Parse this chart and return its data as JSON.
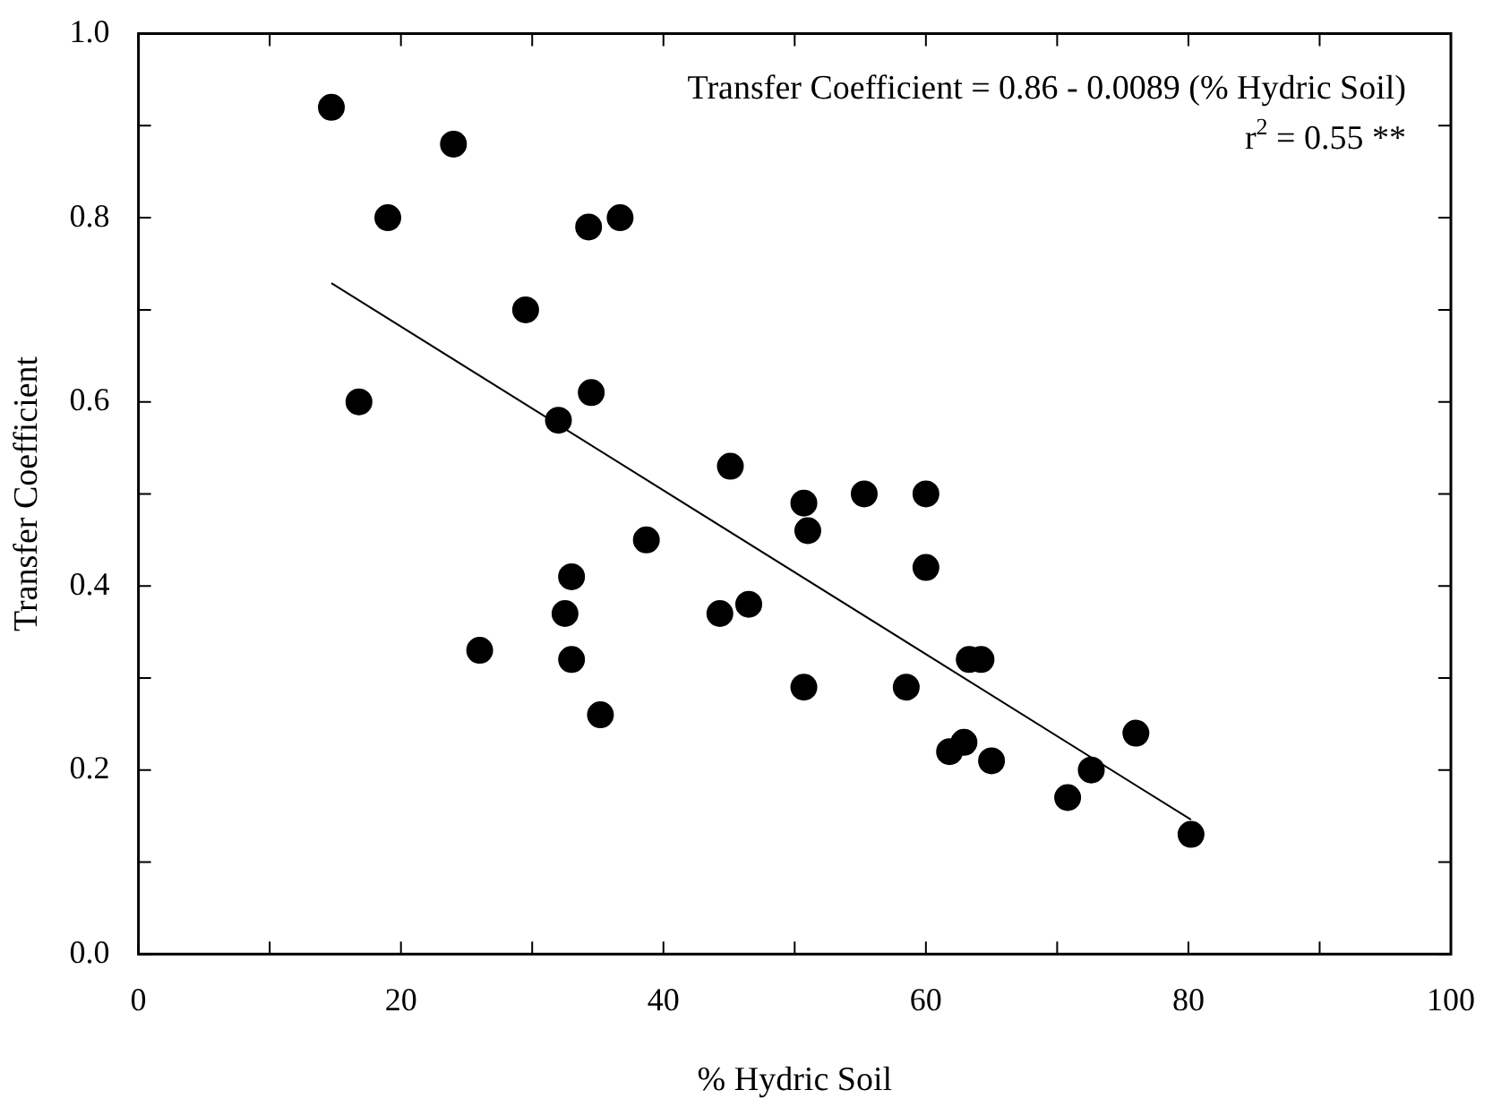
{
  "chart_data": {
    "type": "scatter",
    "xlabel": "% Hydric Soil",
    "ylabel": "Transfer Coefficient",
    "annotations": [
      "Transfer Coefficient = 0.86 - 0.0089 (% Hydric Soil)",
      "r$^{2}$ = 0.55 **"
    ],
    "xlim": [
      0,
      100
    ],
    "ylim": [
      0,
      1
    ],
    "xticks": [
      0,
      {
        "value": 10,
        "label": null
      },
      20,
      {
        "value": 30,
        "label": null
      },
      40,
      {
        "value": 50,
        "label": null
      },
      60,
      {
        "value": 70,
        "label": null
      },
      80,
      {
        "value": 90,
        "label": null
      },
      100
    ],
    "yticks": [
      {
        "value": 0,
        "label": "0.0"
      },
      {
        "value": 0.1,
        "label": null
      },
      0.2,
      {
        "value": 0.3,
        "label": null
      },
      0.4,
      {
        "value": 0.5,
        "label": null
      },
      0.6,
      {
        "value": 0.7,
        "label": null
      },
      0.8,
      {
        "value": 0.9,
        "label": null
      },
      {
        "value": 1,
        "label": "1.0"
      }
    ],
    "grid": false,
    "legend": false,
    "marker": "circle",
    "series": [
      {
        "type": "scatter",
        "color": "#000000",
        "x": [
          14.7,
          16.8,
          19,
          24,
          26,
          29.5,
          32,
          32.5,
          33,
          33,
          34.3,
          34.5,
          35.2,
          36.7,
          38.7,
          44.3,
          45.1,
          46.5,
          50.7,
          50.7,
          51,
          55.3,
          58.5,
          60,
          60,
          61.8,
          62.9,
          63.3,
          64.2,
          65,
          70.8,
          72.6,
          76,
          80.2
        ],
        "values": [
          0.92,
          0.6,
          0.8,
          0.88,
          0.33,
          0.7,
          0.58,
          0.37,
          0.41,
          0.32,
          0.79,
          0.61,
          0.26,
          0.8,
          0.45,
          0.37,
          0.53,
          0.38,
          0.49,
          0.29,
          0.46,
          0.5,
          0.29,
          0.5,
          0.42,
          0.22,
          0.23,
          0.32,
          0.32,
          0.21,
          0.17,
          0.2,
          0.24,
          0.13
        ]
      },
      {
        "type": "line",
        "color": "#000000",
        "marker": "none",
        "line_style": "solid",
        "x": [
          14.7,
          80.2
        ],
        "values": [
          0.729,
          0.146
        ]
      }
    ]
  }
}
